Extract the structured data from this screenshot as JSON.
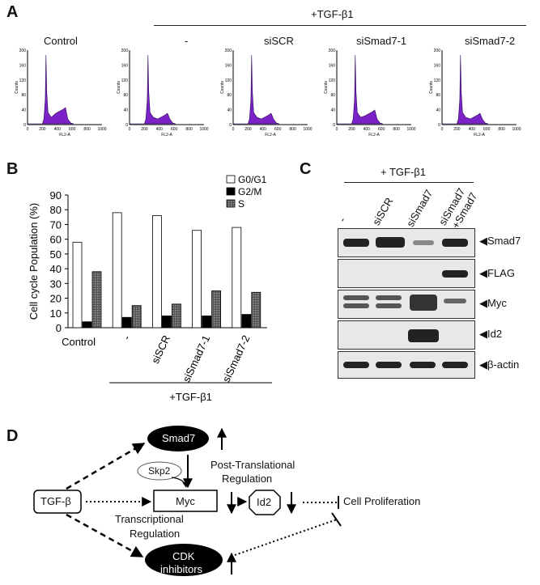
{
  "panel_a": {
    "letter": "A",
    "treatment": "+TGF-β1",
    "histograms": [
      {
        "title": "Control"
      },
      {
        "title": "-"
      },
      {
        "title": "siSCR"
      },
      {
        "title": "siSmad7-1"
      },
      {
        "title": "siSmad7-2"
      }
    ],
    "axis": {
      "xlabel": "FL2-A",
      "ylabel": "Counts",
      "xticks": [
        "0",
        "200",
        "400",
        "600",
        "800",
        "1000"
      ],
      "yticks": [
        "0",
        "40",
        "80",
        "120",
        "160",
        "200"
      ]
    },
    "fill_color": "#7a22c8"
  },
  "chart_data": {
    "type": "bar",
    "panel_letter": "B",
    "categories": [
      "Control",
      "-",
      "siSCR",
      "siSmad7-1",
      "siSmad7-2"
    ],
    "series": [
      {
        "name": "G0/G1",
        "values": [
          58,
          78,
          76,
          66,
          68
        ],
        "color": "#ffffff"
      },
      {
        "name": "G2/M",
        "values": [
          4,
          7,
          8,
          8,
          9
        ],
        "color": "#000000"
      },
      {
        "name": "S",
        "values": [
          38,
          15,
          16,
          25,
          24
        ],
        "color": "#666666"
      }
    ],
    "ylabel": "Cell cycle Population (%)",
    "ylim": [
      0,
      90
    ],
    "yticks": [
      0,
      10,
      20,
      30,
      40,
      50,
      60,
      70,
      80,
      90
    ],
    "group_label": "+TGF-β1",
    "legend": "top-right"
  },
  "panel_c": {
    "letter": "C",
    "treatment": "+ TGF-β1",
    "lanes": [
      "-",
      "siSCR",
      "siSmad7",
      "siSmad7",
      "+Smad7"
    ],
    "rows": [
      "◀Smad7",
      "◀FLAG",
      "◀Myc",
      "◀Id2",
      "◀β-actin"
    ]
  },
  "panel_d": {
    "letter": "D",
    "tgfb": "TGF-β",
    "smad7": "Smad7",
    "skp2": "Skp2",
    "myc": "Myc",
    "id2": "Id2",
    "cdk_line1": "CDK",
    "cdk_line2": "inhibitors",
    "post_line1": "Post-Translational",
    "post_line2": "Regulation",
    "trans_line1": "Transcriptional",
    "trans_line2": "Regulation",
    "prolif": "Cell Proliferation"
  }
}
